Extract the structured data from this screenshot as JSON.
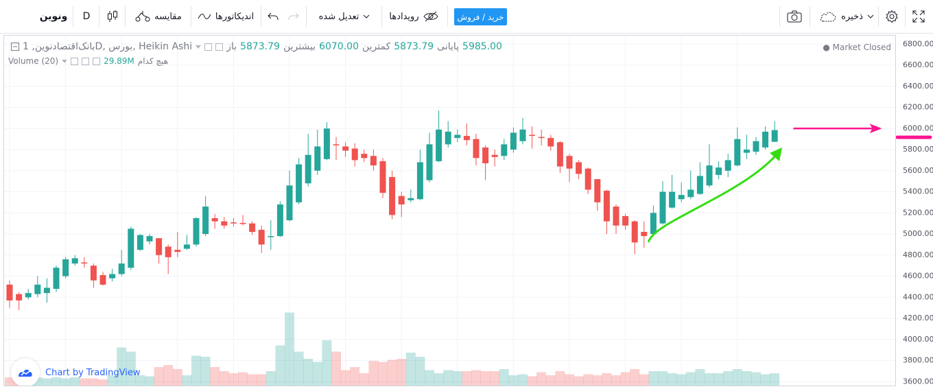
{
  "toolbar": {
    "symbol": "ونوین",
    "interval": "D",
    "compare_label": "مقایسه",
    "indicators_label": "اندیکاتورها",
    "adjust_label": "تعدیل شده",
    "events_label": "رویدادها",
    "trade_label": "خرید / فروش",
    "save_label": "ذخیره"
  },
  "legend": {
    "title": "بانک‌اقتصادنوین, 1D, بورس, Heikin Ashi",
    "open_label": "باز",
    "open": "5873.79",
    "high_label": "بیشترین",
    "high": "6070.00",
    "low_label": "کمترین",
    "low": "5873.79",
    "close_label": "پایانی",
    "close": "5985.00",
    "volume_label": "Volume (20)",
    "volume_ma_label": "هیچ کدام",
    "volume_value": "29.89M",
    "market_status": "Market Closed"
  },
  "watermark": "Chart by TradingView",
  "colors": {
    "up": "#26a69a",
    "down": "#ef5350",
    "annotation_arrow_right": "#ff1493",
    "annotation_arrow_trend": "#33dd11"
  },
  "chart_data": {
    "type": "candlestick",
    "style": "Heikin Ashi",
    "interval": "1D",
    "ylim": [
      3550,
      6880
    ],
    "y_ticks": [
      3600,
      3800,
      4000,
      4200,
      4400,
      4600,
      4800,
      5000,
      5200,
      5400,
      5600,
      5800,
      6000,
      6200,
      6400,
      6600,
      6800
    ],
    "grid": true,
    "last_close": 5985,
    "candles": [
      {
        "o": 4520,
        "h": 4560,
        "l": 4300,
        "c": 4370
      },
      {
        "o": 4430,
        "h": 4450,
        "l": 4280,
        "c": 4370
      },
      {
        "o": 4400,
        "h": 4480,
        "l": 4380,
        "c": 4440
      },
      {
        "o": 4430,
        "h": 4600,
        "l": 4400,
        "c": 4520
      },
      {
        "o": 4440,
        "h": 4580,
        "l": 4350,
        "c": 4490
      },
      {
        "o": 4480,
        "h": 4700,
        "l": 4450,
        "c": 4680
      },
      {
        "o": 4600,
        "h": 4780,
        "l": 4580,
        "c": 4760
      },
      {
        "o": 4720,
        "h": 4800,
        "l": 4700,
        "c": 4770
      },
      {
        "o": 4730,
        "h": 4780,
        "l": 4680,
        "c": 4720
      },
      {
        "o": 4700,
        "h": 4720,
        "l": 4490,
        "c": 4560
      },
      {
        "o": 4610,
        "h": 4640,
        "l": 4510,
        "c": 4520
      },
      {
        "o": 4580,
        "h": 4670,
        "l": 4550,
        "c": 4620
      },
      {
        "o": 4620,
        "h": 4850,
        "l": 4600,
        "c": 4720
      },
      {
        "o": 4680,
        "h": 5070,
        "l": 4660,
        "c": 5050
      },
      {
        "o": 4850,
        "h": 5000,
        "l": 4840,
        "c": 4990
      },
      {
        "o": 4930,
        "h": 5000,
        "l": 4900,
        "c": 4980
      },
      {
        "o": 4960,
        "h": 4960,
        "l": 4720,
        "c": 4800
      },
      {
        "o": 4880,
        "h": 4900,
        "l": 4620,
        "c": 4780
      },
      {
        "o": 4850,
        "h": 5020,
        "l": 4780,
        "c": 4830
      },
      {
        "o": 4860,
        "h": 4990,
        "l": 4850,
        "c": 4900
      },
      {
        "o": 4900,
        "h": 5160,
        "l": 4880,
        "c": 5150
      },
      {
        "o": 5000,
        "h": 5360,
        "l": 4980,
        "c": 5260
      },
      {
        "o": 5150,
        "h": 5190,
        "l": 5050,
        "c": 5120
      },
      {
        "o": 5120,
        "h": 5160,
        "l": 5050,
        "c": 5080
      },
      {
        "o": 5110,
        "h": 5150,
        "l": 5070,
        "c": 5100
      },
      {
        "o": 5105,
        "h": 5180,
        "l": 5080,
        "c": 5095
      },
      {
        "o": 5100,
        "h": 5120,
        "l": 4990,
        "c": 5020
      },
      {
        "o": 5040,
        "h": 5080,
        "l": 4820,
        "c": 4900
      },
      {
        "o": 4970,
        "h": 5130,
        "l": 4850,
        "c": 4980
      },
      {
        "o": 4980,
        "h": 5310,
        "l": 4970,
        "c": 5280
      },
      {
        "o": 5130,
        "h": 5600,
        "l": 5120,
        "c": 5460
      },
      {
        "o": 5300,
        "h": 5720,
        "l": 5280,
        "c": 5660
      },
      {
        "o": 5480,
        "h": 5950,
        "l": 5450,
        "c": 5750
      },
      {
        "o": 5600,
        "h": 5990,
        "l": 5560,
        "c": 5830
      },
      {
        "o": 5710,
        "h": 6060,
        "l": 5700,
        "c": 6000
      },
      {
        "o": 5850,
        "h": 5920,
        "l": 5700,
        "c": 5840
      },
      {
        "o": 5830,
        "h": 5870,
        "l": 5730,
        "c": 5790
      },
      {
        "o": 5810,
        "h": 5860,
        "l": 5640,
        "c": 5700
      },
      {
        "o": 5760,
        "h": 5800,
        "l": 5680,
        "c": 5720
      },
      {
        "o": 5740,
        "h": 5800,
        "l": 5600,
        "c": 5650
      },
      {
        "o": 5690,
        "h": 5720,
        "l": 5340,
        "c": 5390
      },
      {
        "o": 5540,
        "h": 5600,
        "l": 5140,
        "c": 5180
      },
      {
        "o": 5360,
        "h": 5400,
        "l": 5160,
        "c": 5280
      },
      {
        "o": 5320,
        "h": 5420,
        "l": 5300,
        "c": 5340
      },
      {
        "o": 5330,
        "h": 5800,
        "l": 5320,
        "c": 5680
      },
      {
        "o": 5510,
        "h": 5960,
        "l": 5490,
        "c": 5850
      },
      {
        "o": 5690,
        "h": 6170,
        "l": 5680,
        "c": 5990
      },
      {
        "o": 5850,
        "h": 6070,
        "l": 5820,
        "c": 5970
      },
      {
        "o": 5910,
        "h": 5990,
        "l": 5870,
        "c": 5940
      },
      {
        "o": 5930,
        "h": 6050,
        "l": 5840,
        "c": 5890
      },
      {
        "o": 5900,
        "h": 5950,
        "l": 5650,
        "c": 5720
      },
      {
        "o": 5820,
        "h": 5840,
        "l": 5510,
        "c": 5670
      },
      {
        "o": 5750,
        "h": 5800,
        "l": 5640,
        "c": 5730
      },
      {
        "o": 5740,
        "h": 5900,
        "l": 5700,
        "c": 5850
      },
      {
        "o": 5800,
        "h": 6010,
        "l": 5770,
        "c": 5960
      },
      {
        "o": 5880,
        "h": 6100,
        "l": 5850,
        "c": 5990
      },
      {
        "o": 5940,
        "h": 6020,
        "l": 5810,
        "c": 5930
      },
      {
        "o": 5920,
        "h": 5990,
        "l": 5840,
        "c": 5910
      },
      {
        "o": 5910,
        "h": 5940,
        "l": 5790,
        "c": 5830
      },
      {
        "o": 5870,
        "h": 5880,
        "l": 5580,
        "c": 5640
      },
      {
        "o": 5740,
        "h": 5760,
        "l": 5490,
        "c": 5620
      },
      {
        "o": 5680,
        "h": 5700,
        "l": 5520,
        "c": 5570
      },
      {
        "o": 5620,
        "h": 5630,
        "l": 5380,
        "c": 5420
      },
      {
        "o": 5520,
        "h": 5520,
        "l": 5220,
        "c": 5300
      },
      {
        "o": 5410,
        "h": 5420,
        "l": 5000,
        "c": 5120
      },
      {
        "o": 5260,
        "h": 5280,
        "l": 5000,
        "c": 5080
      },
      {
        "o": 5170,
        "h": 5190,
        "l": 5040,
        "c": 5080
      },
      {
        "o": 5120,
        "h": 5130,
        "l": 4810,
        "c": 4920
      },
      {
        "o": 5020,
        "h": 5120,
        "l": 4870,
        "c": 4980
      },
      {
        "o": 5000,
        "h": 5270,
        "l": 4990,
        "c": 5200
      },
      {
        "o": 5100,
        "h": 5500,
        "l": 5090,
        "c": 5400
      },
      {
        "o": 5250,
        "h": 5560,
        "l": 5240,
        "c": 5400
      },
      {
        "o": 5330,
        "h": 5490,
        "l": 5300,
        "c": 5370
      },
      {
        "o": 5350,
        "h": 5600,
        "l": 5330,
        "c": 5420
      },
      {
        "o": 5380,
        "h": 5680,
        "l": 5370,
        "c": 5550
      },
      {
        "o": 5460,
        "h": 5850,
        "l": 5440,
        "c": 5650
      },
      {
        "o": 5560,
        "h": 5690,
        "l": 5520,
        "c": 5630
      },
      {
        "o": 5600,
        "h": 5760,
        "l": 5540,
        "c": 5700
      },
      {
        "o": 5650,
        "h": 6010,
        "l": 5640,
        "c": 5900
      },
      {
        "o": 5770,
        "h": 5940,
        "l": 5710,
        "c": 5800
      },
      {
        "o": 5780,
        "h": 5920,
        "l": 5750,
        "c": 5880
      },
      {
        "o": 5820,
        "h": 6020,
        "l": 5800,
        "c": 5970
      },
      {
        "o": 5873.79,
        "h": 6070,
        "l": 5873.79,
        "c": 5985
      }
    ],
    "volume_relative": [
      0.06,
      0.04,
      0.05,
      0.06,
      0.05,
      0.06,
      0.05,
      0.06,
      0.05,
      0.05,
      0.04,
      0.08,
      0.35,
      0.31,
      0.08,
      0.07,
      0.16,
      0.18,
      0.14,
      0.08,
      0.27,
      0.26,
      0.16,
      0.12,
      0.1,
      0.11,
      0.09,
      0.09,
      0.12,
      0.37,
      0.69,
      0.31,
      0.24,
      0.21,
      0.42,
      0.31,
      0.13,
      0.16,
      0.1,
      0.22,
      0.21,
      0.23,
      0.24,
      0.3,
      0.26,
      0.13,
      0.1,
      0.13,
      0.12,
      0.12,
      0.13,
      0.12,
      0.12,
      0.14,
      0.08,
      0.09,
      0.07,
      0.11,
      0.08,
      0.12,
      0.09,
      0.07,
      0.09,
      0.08,
      0.1,
      0.08,
      0.11,
      0.14,
      0.09,
      0.12,
      0.12,
      0.1,
      0.09,
      0.11,
      0.14,
      0.1,
      0.1,
      0.12,
      0.14,
      0.12,
      0.11,
      0.09,
      0.1
    ],
    "annotations": [
      {
        "type": "arrow",
        "color": "#ff1493",
        "from": {
          "bar": 84,
          "price": 6000
        },
        "to": {
          "bar": 93.5,
          "price": 6000
        }
      },
      {
        "type": "curved-arrow",
        "color": "#33dd11",
        "from": {
          "bar": 68.5,
          "price": 4930
        },
        "to": {
          "bar": 82.8,
          "price": 5820
        }
      },
      {
        "type": "line",
        "color": "#ff1493",
        "price": 5910
      }
    ]
  }
}
